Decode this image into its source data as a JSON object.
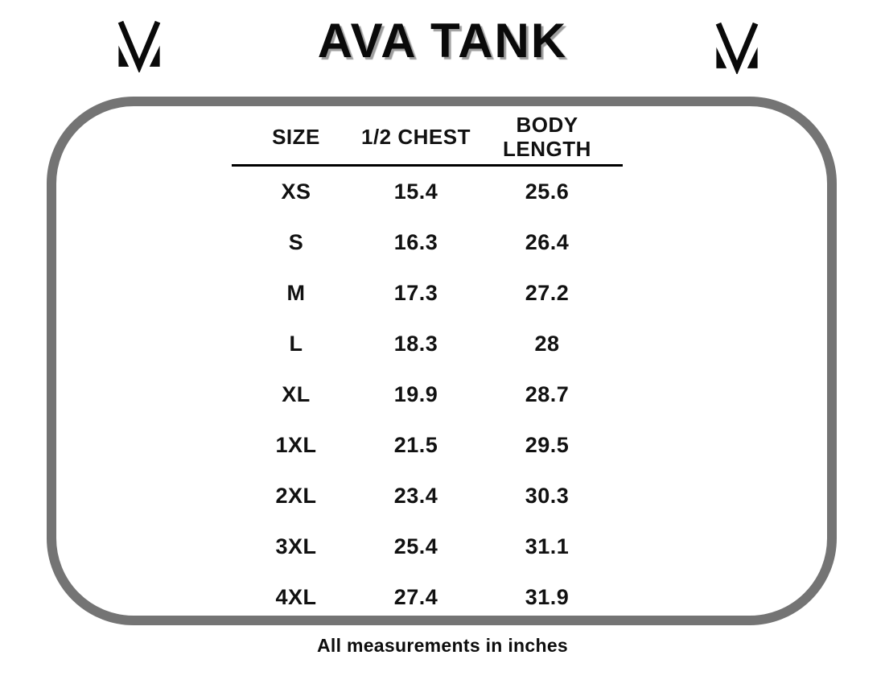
{
  "header": {
    "title": "AVA TANK",
    "logo": "brand-m-logo"
  },
  "chart_data": {
    "type": "table",
    "title": "AVA TANK",
    "columns": [
      "SIZE",
      "1/2 CHEST",
      "BODY LENGTH"
    ],
    "rows": [
      [
        "XS",
        "15.4",
        "25.6"
      ],
      [
        "S",
        "16.3",
        "26.4"
      ],
      [
        "M",
        "17.3",
        "27.2"
      ],
      [
        "L",
        "18.3",
        "28"
      ],
      [
        "XL",
        "19.9",
        "28.7"
      ],
      [
        "1XL",
        "21.5",
        "29.5"
      ],
      [
        "2XL",
        "23.4",
        "30.3"
      ],
      [
        "3XL",
        "25.4",
        "31.1"
      ],
      [
        "4XL",
        "27.4",
        "31.9"
      ]
    ],
    "note": "All measurements in inches",
    "layout": {
      "legend": "none",
      "grid": "header-underline-only"
    }
  },
  "footer": {
    "note": "All measurements in inches"
  },
  "colors": {
    "frame_border": "#747474",
    "text": "#111111",
    "title_shadow": "#9e9e9e",
    "background": "#ffffff"
  }
}
